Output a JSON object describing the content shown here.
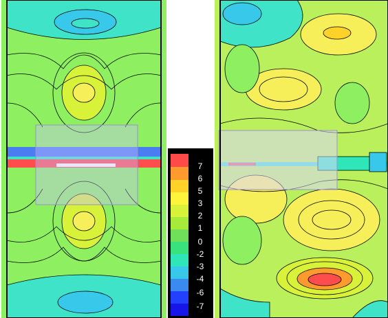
{
  "colorbar": {
    "levels": [
      "7",
      "6",
      "5",
      "3",
      "2",
      "1",
      "0",
      "-2",
      "-3",
      "-4",
      "-6",
      "-7"
    ],
    "colors": [
      "#ff4a4a",
      "#ff9a2e",
      "#ffd22a",
      "#fff43c",
      "#d8f23a",
      "#a6ea3a",
      "#6fe05a",
      "#3ae27e",
      "#2fe6b8",
      "#37c8ea",
      "#3a8af0",
      "#2340ff",
      "#1616e8"
    ]
  },
  "palette": {
    "green": "#8ef060",
    "light_green": "#b9f05c",
    "yellow": "#f6ef5a",
    "cyan": "#3fe3c8",
    "blue": "#4a7df2",
    "red": "#ff4d4d",
    "overlay": "rgba(200,190,255,0.35)"
  }
}
